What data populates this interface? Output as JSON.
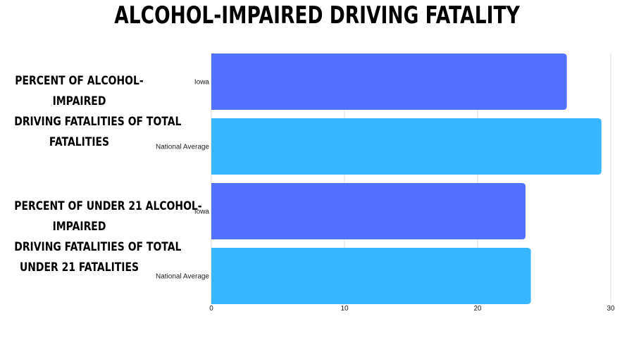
{
  "title": "ALCOHOL-IMPAIRED DRIVING FATALITY",
  "colors": {
    "iowa": "#5271ff",
    "national": "#38b6ff",
    "grid": "#dddddd"
  },
  "chart_data": {
    "type": "bar",
    "orientation": "horizontal",
    "title": "ALCOHOL-IMPAIRED DRIVING FATALITY",
    "xlim": [
      0,
      30
    ],
    "xticks": [
      "0",
      "10",
      "20",
      "30"
    ],
    "grid": true,
    "groups": [
      {
        "label_lines": [
          "PERCENT OF ALCOHOL-",
          "IMPAIRED",
          "DRIVING FATALITIES OF TOTAL",
          "FATALITIES"
        ],
        "bars": [
          {
            "category": "Iowa",
            "value": 26.7,
            "color": "#5271ff"
          },
          {
            "category": "National Average",
            "value": 29.3,
            "color": "#38b6ff"
          }
        ]
      },
      {
        "label_lines": [
          "PERCENT OF UNDER 21 ALCOHOL-",
          "IMPAIRED",
          "DRIVING FATALITIES OF TOTAL",
          "UNDER 21 FATALITIES"
        ],
        "bars": [
          {
            "category": "Iowa",
            "value": 23.6,
            "color": "#5271ff"
          },
          {
            "category": "National Average",
            "value": 24.0,
            "color": "#38b6ff"
          }
        ]
      }
    ]
  }
}
